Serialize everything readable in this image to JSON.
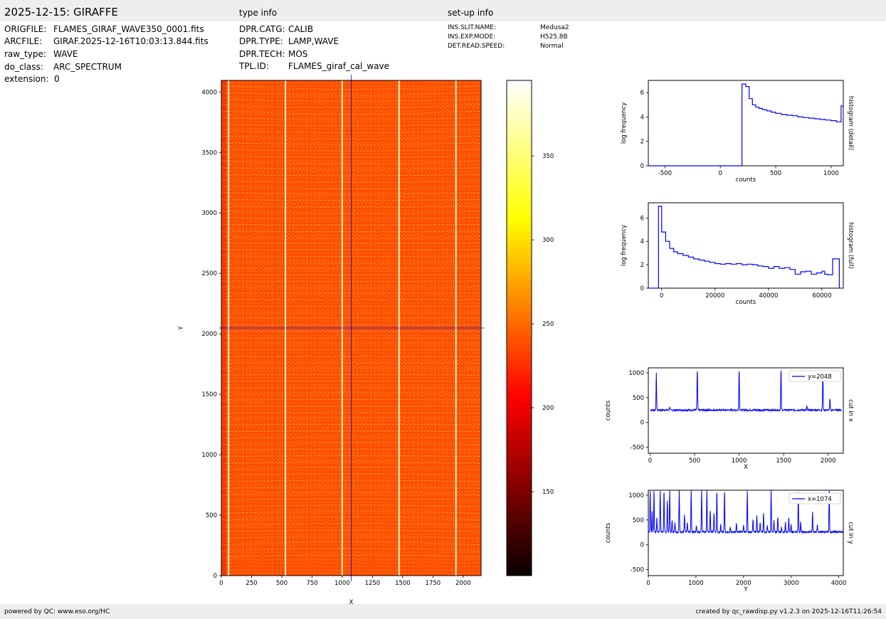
{
  "header": {
    "title": "2025-12-15: GIRAFFE",
    "type_info_title": "type info",
    "setup_info_title": "set-up info"
  },
  "file_info": [
    {
      "key": "ORIGFILE:",
      "value": "FLAMES_GIRAF_WAVE350_0001.fits"
    },
    {
      "key": "ARCFILE:",
      "value": "GIRAF.2025-12-16T10:03:13.844.fits"
    },
    {
      "key": "raw_type:",
      "value": "WAVE"
    },
    {
      "key": "do_class:",
      "value": "ARC_SPECTRUM"
    },
    {
      "key": "extension:",
      "value": "0"
    }
  ],
  "type_info": [
    {
      "key": "DPR.CATG:",
      "value": "CALIB"
    },
    {
      "key": "DPR.TYPE:",
      "value": "LAMP,WAVE"
    },
    {
      "key": "DPR.TECH:",
      "value": "MOS"
    },
    {
      "key": "TPL.ID:",
      "value": "FLAMES_giraf_cal_wave"
    }
  ],
  "setup_info": [
    {
      "key": "INS.SLIT.NAME:",
      "value": "Medusa2"
    },
    {
      "key": "INS.EXP.MODE:",
      "value": "H525.8B"
    },
    {
      "key": "DET.READ.SPEED:",
      "value": "Normal"
    }
  ],
  "footer": {
    "left": "powered by QC: www.eso.org/HC",
    "right": "created by qc_rawdisp.py v1.2.3 on 2025-12-16T11:26:54"
  },
  "colors": {
    "series": "#0000ff",
    "cut_line": "#0000ff",
    "image_base": "#ff4a00",
    "band": "#eeeeee"
  },
  "chart_data": [
    {
      "type": "heatmap",
      "xlabel": "X",
      "ylabel": "Y",
      "xlim": [
        0,
        2148
      ],
      "ylim": [
        0,
        4096
      ],
      "xticks": [
        0,
        250,
        500,
        750,
        1000,
        1250,
        1500,
        1750,
        2000
      ],
      "yticks": [
        0,
        500,
        1000,
        1500,
        2000,
        2500,
        3000,
        3500,
        4000
      ],
      "cut_x": 1074,
      "cut_y": 2048,
      "bright_columns": [
        60,
        530,
        1000,
        1470,
        1940
      ],
      "colorbar": {
        "colormap": "hot",
        "vmin": 100,
        "vmax": 395,
        "ticks": [
          150,
          200,
          250,
          300,
          350
        ]
      }
    },
    {
      "type": "line",
      "subtype": "step",
      "right_label": "histogram (detail)",
      "xlabel": "counts",
      "ylabel": "log frequency",
      "xlim": [
        -650,
        1110
      ],
      "ylim": [
        0,
        7
      ],
      "xticks": [
        -500,
        0,
        500,
        1000
      ],
      "xticklabels": [
        "-500",
        "0",
        "500",
        "1000"
      ],
      "yticks": [
        0,
        2,
        4,
        6
      ],
      "x": [
        195,
        195,
        230,
        260,
        290,
        320,
        350,
        380,
        420,
        460,
        500,
        550,
        600,
        650,
        700,
        750,
        800,
        850,
        900,
        950,
        1000,
        1050,
        1090,
        1090,
        1110
      ],
      "y": [
        0,
        6.7,
        6.5,
        5.5,
        5.0,
        4.8,
        4.7,
        4.6,
        4.5,
        4.4,
        4.3,
        4.2,
        4.15,
        4.1,
        4.0,
        3.95,
        3.9,
        3.85,
        3.8,
        3.75,
        3.7,
        3.6,
        3.55,
        4.9,
        4.9
      ]
    },
    {
      "type": "line",
      "subtype": "step",
      "right_label": "histogram (full)",
      "xlabel": "counts",
      "ylabel": "log frequency",
      "xlim": [
        -5000,
        68000
      ],
      "ylim": [
        0,
        7.3
      ],
      "xticks": [
        0,
        20000,
        40000,
        60000
      ],
      "xticklabels": [
        "0",
        "20000",
        "40000",
        "60000"
      ],
      "yticks": [
        0,
        2,
        4,
        6
      ],
      "x": [
        -1200,
        -1200,
        0,
        1500,
        3000,
        4500,
        6000,
        8000,
        10000,
        12000,
        14000,
        16000,
        18000,
        20000,
        22000,
        24000,
        26000,
        28000,
        30000,
        32000,
        34000,
        36000,
        38000,
        40000,
        42000,
        44000,
        46000,
        48000,
        50000,
        52000,
        54000,
        56000,
        58000,
        60000,
        61000,
        62000,
        64000,
        65000,
        66500,
        66500
      ],
      "y": [
        0,
        7.0,
        4.8,
        4.0,
        3.4,
        3.1,
        2.95,
        2.8,
        2.65,
        2.5,
        2.4,
        2.3,
        2.2,
        2.1,
        2.05,
        2.1,
        2.05,
        2.1,
        2.0,
        2.05,
        2.0,
        1.9,
        1.85,
        1.7,
        1.85,
        1.7,
        1.75,
        1.6,
        1.2,
        1.4,
        1.45,
        1.2,
        1.3,
        1.45,
        1.2,
        1.15,
        2.5,
        2.5,
        0,
        0
      ]
    },
    {
      "type": "line",
      "right_label": "cut in x",
      "xlabel": "X",
      "ylabel": "counts",
      "legend": "y=2048",
      "legend_position": "top-right",
      "xlim": [
        -20,
        2170
      ],
      "ylim": [
        -620,
        1100
      ],
      "xticks": [
        0,
        500,
        1000,
        1500,
        2000
      ],
      "yticks": [
        -500,
        0,
        500,
        1000
      ],
      "baseline": 250,
      "peaks": [
        [
          70,
          1000
        ],
        [
          220,
          320
        ],
        [
          530,
          1100
        ],
        [
          1000,
          1100
        ],
        [
          1470,
          1100
        ],
        [
          1760,
          330
        ],
        [
          1940,
          1100
        ],
        [
          2020,
          480
        ]
      ]
    },
    {
      "type": "line",
      "right_label": "cut in y",
      "xlabel": "Y",
      "ylabel": "counts",
      "legend": "x=1074",
      "legend_position": "top-right",
      "xlim": [
        0,
        4096
      ],
      "ylim": [
        -620,
        1100
      ],
      "xticks": [
        0,
        1000,
        2000,
        3000,
        4000
      ],
      "yticks": [
        -500,
        0,
        500,
        1000
      ],
      "baseline": 260,
      "peaks": [
        [
          40,
          1100
        ],
        [
          80,
          700
        ],
        [
          120,
          1100
        ],
        [
          180,
          550
        ],
        [
          250,
          1100
        ],
        [
          330,
          1100
        ],
        [
          400,
          900
        ],
        [
          450,
          1100
        ],
        [
          500,
          500
        ],
        [
          560,
          450
        ],
        [
          650,
          1100
        ],
        [
          760,
          600
        ],
        [
          820,
          450
        ],
        [
          900,
          1100
        ],
        [
          1010,
          400
        ],
        [
          1120,
          1100
        ],
        [
          1230,
          1100
        ],
        [
          1300,
          700
        ],
        [
          1380,
          650
        ],
        [
          1440,
          1100
        ],
        [
          1520,
          400
        ],
        [
          1600,
          1100
        ],
        [
          1720,
          350
        ],
        [
          1850,
          450
        ],
        [
          2000,
          400
        ],
        [
          2080,
          1100
        ],
        [
          2200,
          500
        ],
        [
          2280,
          600
        ],
        [
          2350,
          450
        ],
        [
          2420,
          650
        ],
        [
          2500,
          400
        ],
        [
          2580,
          1100
        ],
        [
          2640,
          480
        ],
        [
          2720,
          550
        ],
        [
          2800,
          350
        ],
        [
          2880,
          450
        ],
        [
          2950,
          550
        ],
        [
          3000,
          400
        ],
        [
          3150,
          1050
        ],
        [
          3200,
          450
        ],
        [
          3450,
          650
        ],
        [
          3550,
          400
        ],
        [
          3800,
          1100
        ]
      ]
    }
  ]
}
